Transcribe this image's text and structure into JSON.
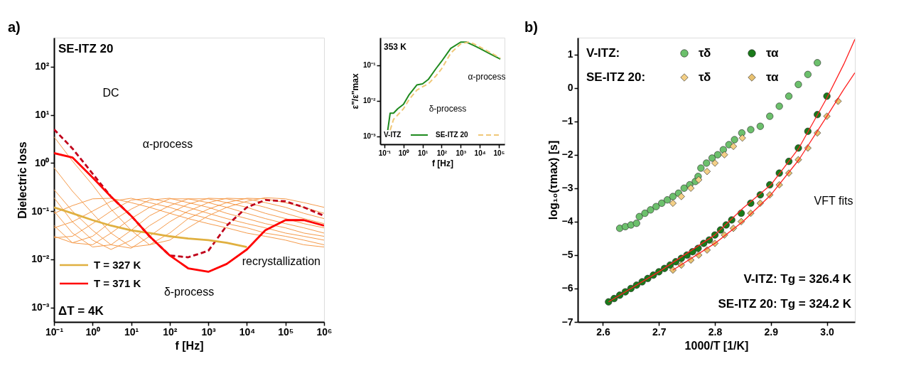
{
  "chart_data": [
    {
      "type": "line",
      "xlabel": "f [Hz]",
      "ylabel": "Dielectric loss",
      "log": "xy",
      "grid": false,
      "legend": "bottom left",
      "xlim": [
        0.1,
        1000000
      ],
      "ylim": [
        0.0005,
        400
      ],
      "xticks": [
        {
          "value": 0.1,
          "label": "10⁻¹"
        },
        {
          "value": 1,
          "label": "10⁰"
        },
        {
          "value": 10,
          "label": "10¹"
        },
        {
          "value": 100,
          "label": "10²"
        },
        {
          "value": 1000,
          "label": "10³"
        },
        {
          "value": 10000,
          "label": "10⁴"
        },
        {
          "value": 100000,
          "label": "10⁵"
        },
        {
          "value": 1000000,
          "label": "10⁶"
        }
      ],
      "yticks": [
        {
          "value": 0.001,
          "label": "10⁻³"
        },
        {
          "value": 0.01,
          "label": "10⁻²"
        },
        {
          "value": 0.1,
          "label": "10⁻¹"
        },
        {
          "value": 1,
          "label": "10⁰"
        },
        {
          "value": 10,
          "label": "10¹"
        },
        {
          "value": 100,
          "label": "10²"
        }
      ],
      "x": [
        0.1,
        0.3,
        1,
        3,
        10,
        30,
        100,
        300,
        1000,
        3000,
        10000,
        30000,
        100000,
        300000,
        1000000
      ],
      "series": [
        {
          "color": "#f59a4a",
          "values": [
            3.5,
            1.1,
            0.35,
            0.11,
            0.04,
            0.02,
            0.025,
            0.045,
            0.08,
            0.12,
            0.16,
            0.19,
            0.18,
            0.15,
            0.12
          ]
        },
        {
          "color": "#f59a4a",
          "values": [
            0.8,
            0.26,
            0.09,
            0.035,
            0.018,
            0.02,
            0.035,
            0.07,
            0.11,
            0.15,
            0.185,
            0.18,
            0.15,
            0.12,
            0.09
          ]
        },
        {
          "color": "#f59a4a",
          "values": [
            0.28,
            0.1,
            0.04,
            0.02,
            0.017,
            0.03,
            0.06,
            0.1,
            0.15,
            0.185,
            0.18,
            0.15,
            0.12,
            0.09,
            0.07
          ]
        },
        {
          "color": "#f59a4a",
          "values": [
            0.19,
            0.06,
            0.025,
            0.016,
            0.025,
            0.05,
            0.09,
            0.14,
            0.185,
            0.18,
            0.15,
            0.12,
            0.09,
            0.07,
            0.055
          ]
        },
        {
          "color": "#f59a4a",
          "values": [
            0.1,
            0.035,
            0.018,
            0.02,
            0.04,
            0.08,
            0.13,
            0.18,
            0.18,
            0.15,
            0.12,
            0.09,
            0.07,
            0.055,
            0.045
          ]
        },
        {
          "color": "#f59a4a",
          "values": [
            0.05,
            0.022,
            0.02,
            0.035,
            0.07,
            0.12,
            0.18,
            0.18,
            0.15,
            0.12,
            0.09,
            0.07,
            0.055,
            0.045,
            0.035
          ]
        },
        {
          "color": "#f59a4a",
          "values": [
            0.03,
            0.022,
            0.03,
            0.06,
            0.11,
            0.17,
            0.185,
            0.15,
            0.12,
            0.09,
            0.07,
            0.055,
            0.045,
            0.035,
            0.03
          ]
        },
        {
          "color": "#f59a4a",
          "values": [
            0.028,
            0.03,
            0.055,
            0.1,
            0.17,
            0.185,
            0.15,
            0.12,
            0.09,
            0.07,
            0.055,
            0.045,
            0.035,
            0.03,
            0.025
          ]
        },
        {
          "color": "#f59a4a",
          "values": [
            0.045,
            0.06,
            0.1,
            0.16,
            0.185,
            0.15,
            0.12,
            0.09,
            0.07,
            0.055,
            0.045,
            0.035,
            0.03,
            0.025,
            0.02
          ]
        },
        {
          "color": "#f59a4a",
          "values": [
            0.09,
            0.13,
            0.18,
            0.185,
            0.15,
            0.12,
            0.09,
            0.07,
            0.055,
            0.045,
            0.035,
            0.03,
            0.025,
            0.02,
            0.018
          ]
        },
        {
          "color": "#c0001a",
          "line_style": "dashed",
          "values": [
            5,
            2,
            0.6,
            0.2,
            0.08,
            0.03,
            0.012,
            0.011,
            0.015,
            0.05,
            0.12,
            0.17,
            0.16,
            0.12,
            0.08
          ]
        },
        {
          "name": "T = 327 K",
          "color": "#e0b040",
          "values": [
            0.12,
            0.09,
            0.065,
            0.05,
            0.04,
            0.035,
            0.03,
            0.027,
            0.025,
            0.022,
            0.018,
            null,
            null,
            null,
            null
          ]
        },
        {
          "name": "T = 371 K",
          "color": "#ff0000",
          "values": [
            1.6,
            1.3,
            0.5,
            0.2,
            0.08,
            0.03,
            0.012,
            0.0065,
            0.0055,
            0.008,
            0.016,
            0.04,
            0.065,
            0.065,
            0.05
          ]
        }
      ],
      "annotations": [
        "a)",
        "SE-ITZ 20",
        "ΔT = 4K",
        "DC",
        "α-process",
        "δ-process",
        "recrystallization"
      ]
    },
    {
      "type": "line",
      "xlabel": "f [Hz]",
      "ylabel": "ε\"/ε\"max",
      "log": "xy",
      "grid": false,
      "legend": "bottom",
      "xlim": [
        0.06,
        200000
      ],
      "ylim": [
        0.0006,
        0.6
      ],
      "xticks": [
        {
          "value": 0.1,
          "label": "10⁻¹"
        },
        {
          "value": 1,
          "label": "10⁰"
        },
        {
          "value": 10,
          "label": "10¹"
        },
        {
          "value": 100,
          "label": "10²"
        },
        {
          "value": 1000,
          "label": "10³"
        },
        {
          "value": 10000,
          "label": "10⁴"
        },
        {
          "value": 100000,
          "label": "10⁵"
        }
      ],
      "yticks": [
        {
          "value": 0.001,
          "label": "10⁻³"
        },
        {
          "value": 0.01,
          "label": "10⁻²"
        },
        {
          "value": 0.1,
          "label": "10⁻¹"
        }
      ],
      "series": [
        {
          "name": "V-ITZ",
          "color": "#1e8a1e",
          "x": [
            0.15,
            0.2,
            0.3,
            0.5,
            1,
            2,
            5,
            10,
            20,
            50,
            100,
            300,
            1000,
            2000,
            5000,
            10000,
            30000,
            120000
          ],
          "values": [
            0.0015,
            0.0045,
            0.0045,
            0.006,
            0.008,
            0.015,
            0.028,
            0.03,
            0.04,
            0.08,
            0.13,
            0.3,
            0.45,
            0.45,
            0.36,
            0.3,
            0.22,
            0.15
          ]
        },
        {
          "name": "SE-ITZ 20",
          "color": "#f0c878",
          "line_style": "dashed",
          "x": [
            0.2,
            0.3,
            0.5,
            1,
            2,
            5,
            10,
            20,
            50,
            100,
            300,
            1000,
            2500,
            5000,
            10000,
            30000,
            120000
          ],
          "values": [
            0.0015,
            0.003,
            0.004,
            0.006,
            0.011,
            0.02,
            0.025,
            0.03,
            0.05,
            0.08,
            0.22,
            0.4,
            0.45,
            0.4,
            0.33,
            0.24,
            0.16
          ]
        }
      ],
      "annotations": [
        "353 K",
        "α-process",
        "δ-process"
      ]
    },
    {
      "type": "scatter",
      "xlabel": "1000/T [1/K]",
      "ylabel": "log₁₀(τmax) [s]",
      "grid": false,
      "legend": "top left",
      "xlim": [
        2.555,
        3.05
      ],
      "ylim": [
        -7,
        1.5
      ],
      "xticks": [
        2.6,
        2.7,
        2.8,
        2.9,
        {
          "value": 3,
          "label": "3.0"
        }
      ],
      "yticks": [
        {
          "value": -7,
          "label": "−7"
        },
        {
          "value": -6,
          "label": "−6"
        },
        {
          "value": -5,
          "label": "−5"
        },
        {
          "value": -4,
          "label": "−4"
        },
        {
          "value": -3,
          "label": "−3"
        },
        {
          "value": -2,
          "label": "−2"
        },
        {
          "value": -1,
          "label": "−1"
        },
        0,
        1
      ],
      "series": [
        {
          "name": "τδ",
          "color": "#6cc06c",
          "marker": "circle",
          "x": [
            2.63,
            2.64,
            2.65,
            2.66,
            2.665,
            2.675,
            2.685,
            2.695,
            2.705,
            2.715,
            2.725,
            2.735,
            2.745,
            2.755,
            2.765,
            2.77,
            2.775,
            2.785,
            2.795,
            2.805,
            2.815,
            2.825,
            2.835,
            2.848,
            2.864,
            2.881,
            2.898,
            2.915,
            2.932,
            2.949,
            2.966,
            2.983
          ],
          "values": [
            -4.2,
            -4.15,
            -4.1,
            -4.05,
            -3.85,
            -3.75,
            -3.65,
            -3.55,
            -3.45,
            -3.35,
            -3.25,
            -3.15,
            -3.0,
            -2.9,
            -2.8,
            -2.65,
            -2.4,
            -2.25,
            -2.1,
            -2.0,
            -1.85,
            -1.7,
            -1.55,
            -1.35,
            -1.25,
            -1.15,
            -0.85,
            -0.55,
            -0.25,
            0.1,
            0.4,
            0.75
          ]
        },
        {
          "name": "τα",
          "color": "#1a7a1a",
          "marker": "circle",
          "x": [
            2.61,
            2.62,
            2.63,
            2.64,
            2.65,
            2.66,
            2.67,
            2.68,
            2.69,
            2.7,
            2.71,
            2.72,
            2.73,
            2.74,
            2.75,
            2.76,
            2.77,
            2.78,
            2.79,
            2.8,
            2.81,
            2.82,
            2.83,
            2.847,
            2.864,
            2.881,
            2.898,
            2.915,
            2.932,
            2.949,
            2.966,
            2.983,
            3.0
          ],
          "values": [
            -6.4,
            -6.3,
            -6.2,
            -6.1,
            -6.0,
            -5.9,
            -5.8,
            -5.7,
            -5.6,
            -5.5,
            -5.4,
            -5.3,
            -5.2,
            -5.1,
            -5.0,
            -4.9,
            -4.8,
            -4.65,
            -4.55,
            -4.4,
            -4.25,
            -4.1,
            -3.95,
            -3.75,
            -3.45,
            -3.2,
            -2.9,
            -2.55,
            -2.2,
            -1.8,
            -1.3,
            -0.8,
            -0.25
          ]
        },
        {
          "name": "τδ",
          "color": "#f3cf86",
          "marker": "diamond",
          "x": [
            2.725,
            2.74,
            2.757,
            2.771,
            2.786,
            2.8,
            2.817,
            2.833,
            2.849
          ],
          "values": [
            -3.45,
            -3.25,
            -3.0,
            -2.75,
            -2.5,
            -2.25,
            -2.0,
            -1.75,
            -1.5
          ]
        },
        {
          "name": "τα",
          "color": "#e8c170",
          "marker": "diamond",
          "x": [
            2.725,
            2.74,
            2.757,
            2.771,
            2.786,
            2.8,
            2.817,
            2.833,
            2.847,
            2.864,
            2.881,
            2.898,
            2.915,
            2.932,
            2.949,
            2.966,
            2.983,
            3.0,
            3.02
          ],
          "values": [
            -5.45,
            -5.3,
            -5.15,
            -5.0,
            -4.85,
            -4.65,
            -4.4,
            -4.2,
            -4.0,
            -3.75,
            -3.45,
            -3.2,
            -2.9,
            -2.55,
            -2.15,
            -1.8,
            -1.35,
            -0.85,
            -0.4
          ]
        },
        {
          "type": "line",
          "color": "#ff2020",
          "x": [
            2.61,
            2.7,
            2.8,
            2.85,
            2.9,
            2.95,
            3.0,
            3.03,
            3.05
          ],
          "values": [
            -6.4,
            -5.5,
            -4.4,
            -3.6,
            -2.9,
            -1.8,
            -0.3,
            0.7,
            1.45
          ]
        },
        {
          "type": "line",
          "color": "#ff2020",
          "x": [
            2.725,
            2.8,
            2.85,
            2.9,
            2.95,
            3.0,
            3.03,
            3.05
          ],
          "values": [
            -5.45,
            -4.65,
            -4.0,
            -3.2,
            -2.15,
            -0.85,
            -0.05,
            0.45
          ]
        }
      ],
      "annotations": [
        "b)",
        "V-ITZ:",
        "SE-ITZ 20:",
        "V-ITZ: Tg = 326.4 K",
        "SE-ITZ 20: Tg = 324.2 K",
        "VFT fits"
      ]
    }
  ]
}
